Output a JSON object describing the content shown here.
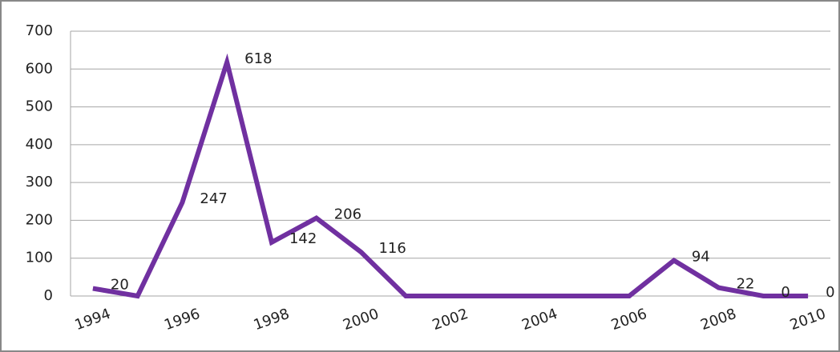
{
  "chart_data": {
    "type": "line",
    "categories": [
      "1994",
      null,
      "1996",
      null,
      "1998",
      null,
      "2000",
      null,
      "2002",
      null,
      "2004",
      null,
      "2006",
      null,
      "2008",
      null,
      "2010"
    ],
    "series": [
      {
        "name": null,
        "color": "#7030a0",
        "values": [
          20,
          0,
          247,
          618,
          142,
          206,
          116,
          0,
          0,
          0,
          0,
          0,
          0,
          94,
          22,
          0,
          0
        ],
        "value_labels": [
          "20",
          null,
          "247",
          "618",
          "142",
          "206",
          "116",
          null,
          null,
          null,
          null,
          null,
          null,
          "94",
          "22",
          "0",
          "0"
        ]
      }
    ],
    "ylim": [
      0,
      700
    ],
    "yticks": [
      0,
      100,
      200,
      300,
      400,
      500,
      600,
      700
    ],
    "grid": true
  }
}
